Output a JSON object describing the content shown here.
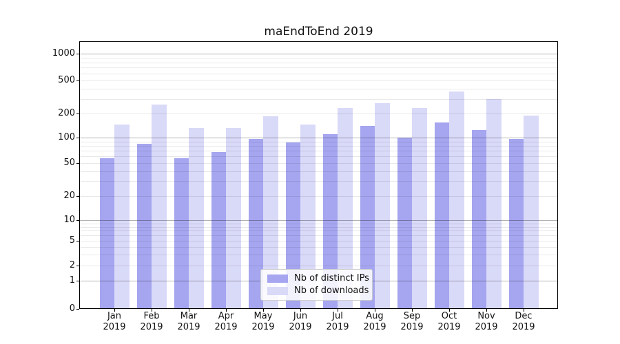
{
  "chart_data": {
    "type": "bar",
    "title": "maEndToEnd 2019",
    "categories": [
      "Jan",
      "Feb",
      "Mar",
      "Apr",
      "May",
      "Jun",
      "Jul",
      "Aug",
      "Sep",
      "Oct",
      "Nov",
      "Dec"
    ],
    "x_year_label": "2019",
    "series": [
      {
        "name": "Nb of distinct IPs",
        "color": "#a5a5f0",
        "values": [
          57,
          85,
          57,
          68,
          97,
          87,
          110,
          140,
          100,
          155,
          124,
          97
        ]
      },
      {
        "name": "Nb of downloads",
        "color": "#d9d9f8",
        "values": [
          145,
          255,
          132,
          133,
          185,
          147,
          232,
          265,
          235,
          370,
          300,
          188
        ]
      }
    ],
    "yscale": "symlog",
    "yticks": [
      0,
      1,
      2,
      5,
      10,
      20,
      50,
      100,
      200,
      500,
      1000
    ],
    "ylim": [
      0,
      1400
    ],
    "grid": "horizontal",
    "legend_position": "lower center"
  }
}
